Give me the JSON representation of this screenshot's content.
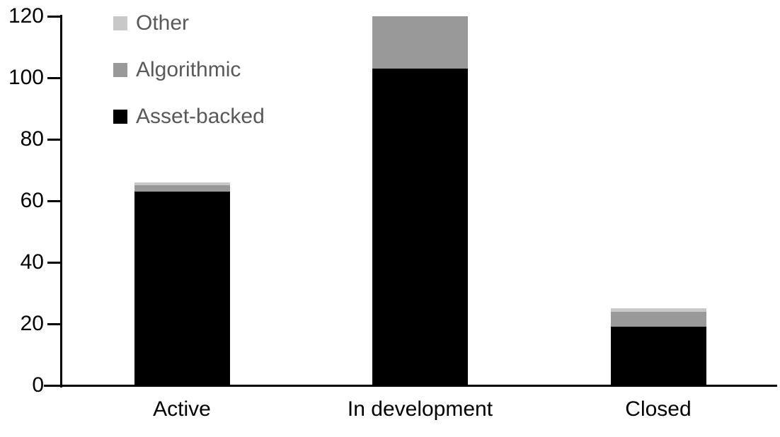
{
  "chart_data": {
    "type": "bar",
    "stacked": true,
    "title": "",
    "xlabel": "",
    "ylabel": "",
    "categories": [
      "Active",
      "In development",
      "Closed"
    ],
    "series": [
      {
        "name": "Asset-backed",
        "color": "#000000",
        "values": [
          63,
          103,
          19
        ]
      },
      {
        "name": "Algorithmic",
        "color": "#999999",
        "values": [
          2,
          17,
          5
        ]
      },
      {
        "name": "Other",
        "color": "#c8c8c8",
        "values": [
          1,
          0,
          1
        ]
      }
    ],
    "totals": [
      66,
      120,
      25
    ],
    "ylim": [
      0,
      120
    ],
    "yticks": [
      0,
      20,
      40,
      60,
      80,
      100,
      120
    ],
    "grid": false,
    "legend": {
      "position": "top-left",
      "order": [
        "Other",
        "Algorithmic",
        "Asset-backed"
      ],
      "text_color": "#595959"
    },
    "axis_color": "#000000",
    "tick_label_color": "#000000",
    "background": "#ffffff"
  }
}
